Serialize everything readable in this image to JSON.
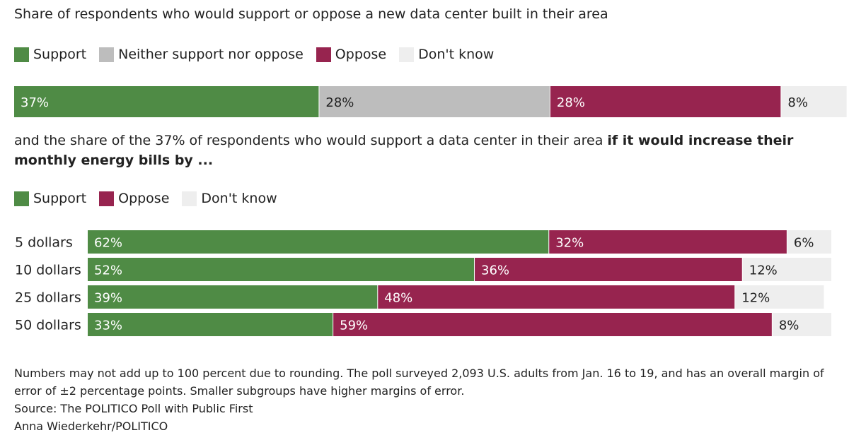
{
  "title": "Share of respondents who would support or oppose a new data center built in their area",
  "legend1": [
    {
      "label": "Support",
      "color": "#4f8b45"
    },
    {
      "label": "Neither support nor oppose",
      "color": "#bdbdbd"
    },
    {
      "label": "Oppose",
      "color": "#97244f"
    },
    {
      "label": "Don't know",
      "color": "#eeeeee"
    }
  ],
  "subtitle_plain": "and the share of the 37% of respondents who would support a data center in their area ",
  "subtitle_bold": "if it would increase their monthly energy bills by ...",
  "legend2": [
    {
      "label": "Support",
      "color": "#4f8b45"
    },
    {
      "label": "Oppose",
      "color": "#97244f"
    },
    {
      "label": "Don't know",
      "color": "#eeeeee"
    }
  ],
  "footnote": {
    "note": "Numbers may not add up to 100 percent due to rounding. The poll surveyed 2,093 U.S. adults from Jan. 16 to 19, and has an overall margin of error of ±2 percentage points. Smaller subgroups have higher margins of error.",
    "source": "Source: The POLITICO Poll with Public First",
    "credit": "Anna Wiederkehr/POLITICO"
  },
  "chart_data": [
    {
      "type": "bar",
      "orientation": "horizontal-stacked-100",
      "categories": [
        ""
      ],
      "series": [
        {
          "name": "Support",
          "values": [
            37
          ],
          "labels": [
            "37%"
          ],
          "color": "#4f8b45",
          "label_color": "#ffffff"
        },
        {
          "name": "Neither support nor oppose",
          "values": [
            28
          ],
          "labels": [
            "28%"
          ],
          "color": "#bdbdbd",
          "label_color": "#222222"
        },
        {
          "name": "Oppose",
          "values": [
            28
          ],
          "labels": [
            "28%"
          ],
          "color": "#97244f",
          "label_color": "#ffffff"
        },
        {
          "name": "Don't know",
          "values": [
            8
          ],
          "labels": [
            "8%"
          ],
          "color": "#eeeeee",
          "label_color": "#222222"
        }
      ]
    },
    {
      "type": "bar",
      "orientation": "horizontal-stacked-100",
      "categories": [
        "5 dollars",
        "10 dollars",
        "25 dollars",
        "50 dollars"
      ],
      "series": [
        {
          "name": "Support",
          "values": [
            62,
            52,
            39,
            33
          ],
          "labels": [
            "62%",
            "52%",
            "39%",
            "33%"
          ],
          "color": "#4f8b45",
          "label_color": "#ffffff"
        },
        {
          "name": "Oppose",
          "values": [
            32,
            36,
            48,
            59
          ],
          "labels": [
            "32%",
            "36%",
            "48%",
            "59%"
          ],
          "color": "#97244f",
          "label_color": "#ffffff"
        },
        {
          "name": "Don't know",
          "values": [
            6,
            12,
            12,
            8
          ],
          "labels": [
            "6%",
            "12%",
            "12%",
            "8%"
          ],
          "color": "#eeeeee",
          "label_color": "#222222"
        }
      ]
    }
  ]
}
